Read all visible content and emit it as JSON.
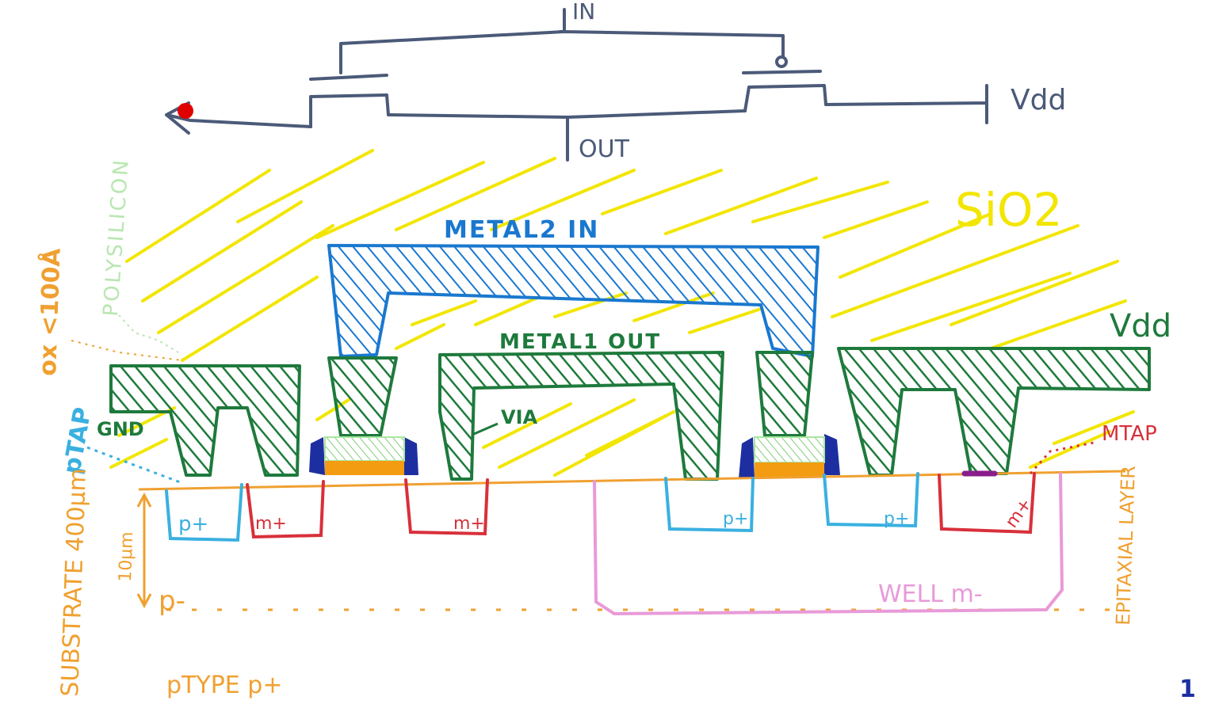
{
  "colors": {
    "schematic": "#4b5a78",
    "sio2": "#f2e600",
    "metal": "#1e7a3c",
    "metal2": "#1a78cf",
    "ptype": "#3ab0e0",
    "ntype": "#d8303a",
    "well": "#e89ad8",
    "substrate": "#f0a030",
    "gate_oxide": "#f39c12",
    "spacer": "#1d2fa0",
    "poly": "#a8e6a0",
    "mtap_contact": "#8b1d8b",
    "marker": "#e00000",
    "polysilicon_label": "#b8e6b0"
  },
  "schematic": {
    "in_label": "IN",
    "out_label": "OUT",
    "vdd_label": "Vdd"
  },
  "layers": {
    "sio2_label": "SiO2",
    "metal2_label": "METAL2 IN",
    "metal1_label": "METAL1 OUT",
    "vdd_label": "Vdd",
    "gnd_label": "GND",
    "via_label": "VIA",
    "ptap_label": "pTAP",
    "mtap_label": "MTAP",
    "polysilicon_label": "POLYSILICON",
    "oxide_label": "ox <100Å"
  },
  "regions": {
    "p_plus": "p+",
    "n_plus": "m+",
    "p_minus": "p-",
    "well_label": "WELL m-",
    "epitaxial_label": "EPITAXIAL LAYER",
    "substrate_label": "SUBSTRATE 400μm",
    "thickness_label": "10μm",
    "ptype_label": "pTYPE p+"
  },
  "page_number": "1"
}
